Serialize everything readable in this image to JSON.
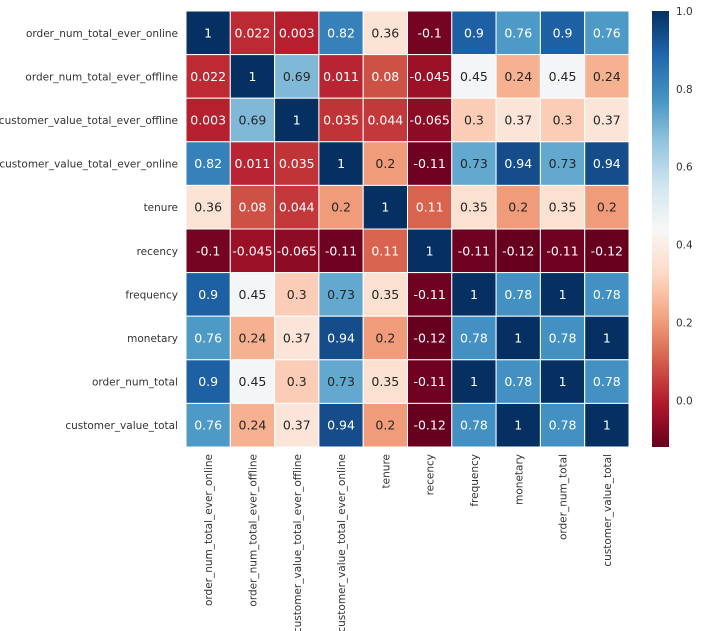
{
  "chart_data": {
    "type": "heatmap",
    "title": "",
    "xlabel": "",
    "ylabel": "",
    "labels": [
      "order_num_total_ever_online",
      "order_num_total_ever_offline",
      "customer_value_total_ever_offline",
      "customer_value_total_ever_online",
      "tenure",
      "recency",
      "frequency",
      "monetary",
      "order_num_total",
      "customer_value_total"
    ],
    "values": [
      [
        1,
        0.022,
        0.003,
        0.82,
        0.36,
        -0.1,
        0.9,
        0.76,
        0.9,
        0.76
      ],
      [
        0.022,
        1,
        0.69,
        0.011,
        0.08,
        -0.045,
        0.45,
        0.24,
        0.45,
        0.24
      ],
      [
        0.003,
        0.69,
        1,
        0.035,
        0.044,
        -0.065,
        0.3,
        0.37,
        0.3,
        0.37
      ],
      [
        0.82,
        0.011,
        0.035,
        1,
        0.2,
        -0.11,
        0.73,
        0.94,
        0.73,
        0.94
      ],
      [
        0.36,
        0.08,
        0.044,
        0.2,
        1,
        0.11,
        0.35,
        0.2,
        0.35,
        0.2
      ],
      [
        -0.1,
        -0.045,
        -0.065,
        -0.11,
        0.11,
        1,
        -0.11,
        -0.12,
        -0.11,
        -0.12
      ],
      [
        0.9,
        0.45,
        0.3,
        0.73,
        0.35,
        -0.11,
        1,
        0.78,
        1,
        0.78
      ],
      [
        0.76,
        0.24,
        0.37,
        0.94,
        0.2,
        -0.12,
        0.78,
        1,
        0.78,
        1
      ],
      [
        0.9,
        0.45,
        0.3,
        0.73,
        0.35,
        -0.11,
        1,
        0.78,
        1,
        0.78
      ],
      [
        0.76,
        0.24,
        0.37,
        0.94,
        0.2,
        -0.12,
        0.78,
        1,
        0.78,
        1
      ]
    ],
    "value_labels": [
      [
        "1",
        "0.022",
        "0.003",
        "0.82",
        "0.36",
        "-0.1",
        "0.9",
        "0.76",
        "0.9",
        "0.76"
      ],
      [
        "0.022",
        "1",
        "0.69",
        "0.011",
        "0.08",
        "-0.045",
        "0.45",
        "0.24",
        "0.45",
        "0.24"
      ],
      [
        "0.003",
        "0.69",
        "1",
        "0.035",
        "0.044",
        "-0.065",
        "0.3",
        "0.37",
        "0.3",
        "0.37"
      ],
      [
        "0.82",
        "0.011",
        "0.035",
        "1",
        "0.2",
        "-0.11",
        "0.73",
        "0.94",
        "0.73",
        "0.94"
      ],
      [
        "0.36",
        "0.08",
        "0.044",
        "0.2",
        "1",
        "0.11",
        "0.35",
        "0.2",
        "0.35",
        "0.2"
      ],
      [
        "-0.1",
        "-0.045",
        "-0.065",
        "-0.11",
        "0.11",
        "1",
        "-0.11",
        "-0.12",
        "-0.11",
        "-0.12"
      ],
      [
        "0.9",
        "0.45",
        "0.3",
        "0.73",
        "0.35",
        "-0.11",
        "1",
        "0.78",
        "1",
        "0.78"
      ],
      [
        "0.76",
        "0.24",
        "0.37",
        "0.94",
        "0.2",
        "-0.12",
        "0.78",
        "1",
        "0.78",
        "1"
      ],
      [
        "0.9",
        "0.45",
        "0.3",
        "0.73",
        "0.35",
        "-0.11",
        "1",
        "0.78",
        "1",
        "0.78"
      ],
      [
        "0.76",
        "0.24",
        "0.37",
        "0.94",
        "0.2",
        "-0.12",
        "0.78",
        "1",
        "0.78",
        "1"
      ]
    ],
    "colormap": "RdBu",
    "vmin": -0.12,
    "vmax": 1,
    "colorbar": {
      "ticks": [
        0.0,
        0.2,
        0.4,
        0.6,
        0.8,
        1.0
      ],
      "tick_labels": [
        "0.0",
        "0.2",
        "0.4",
        "0.6",
        "0.8",
        "1.0"
      ],
      "placement": "right"
    },
    "colors": {
      "stops": [
        "#67001f",
        "#b2182b",
        "#d6604d",
        "#f4a582",
        "#fddbc7",
        "#f7f7f7",
        "#d1e5f0",
        "#92c5de",
        "#4393c3",
        "#2166ac",
        "#053061"
      ],
      "grid_lines": "#ffffff"
    }
  }
}
